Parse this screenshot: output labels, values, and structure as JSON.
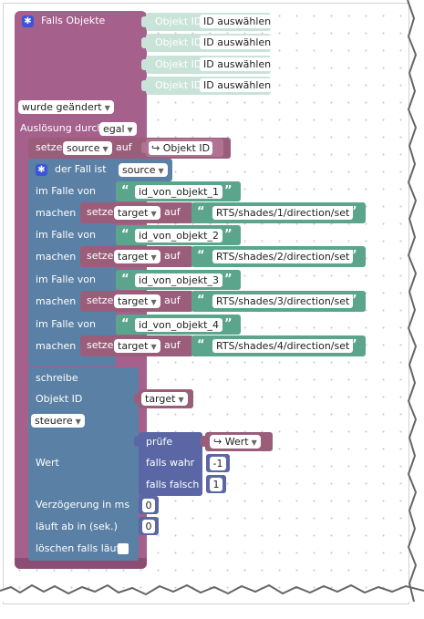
{
  "main_block": {
    "title": "Falls Objekte",
    "object_inputs": [
      {
        "label": "Objekt ID",
        "value": "ID auswählen"
      },
      {
        "label": "Objekt ID",
        "value": "ID auswählen"
      },
      {
        "label": "Objekt ID",
        "value": "ID auswählen"
      },
      {
        "label": "Objekt ID",
        "value": "ID auswählen"
      }
    ],
    "change_dropdown": "wurde geändert",
    "trigger_label": "Auslösung durch",
    "trigger_value": "egal"
  },
  "set_source": {
    "setze": "setze",
    "var": "source",
    "auf": "auf",
    "object_id": "Objekt ID"
  },
  "switch": {
    "title": "der Fall ist",
    "var": "source",
    "cases": [
      {
        "case_label": "im Falle von",
        "case_value": "id_von_objekt_1",
        "do_label": "machen",
        "setze": "setze",
        "var": "target",
        "auf": "auf",
        "value": "RTS/shades/1/direction/set"
      },
      {
        "case_label": "im Falle von",
        "case_value": "id_von_objekt_2",
        "do_label": "machen",
        "setze": "setze",
        "var": "target",
        "auf": "auf",
        "value": "RTS/shades/2/direction/set"
      },
      {
        "case_label": "im Falle von",
        "case_value": "id_von_objekt_3",
        "do_label": "machen",
        "setze": "setze",
        "var": "target",
        "auf": "auf",
        "value": "RTS/shades/3/direction/set"
      },
      {
        "case_label": "im Falle von",
        "case_value": "id_von_objekt_4",
        "do_label": "machen",
        "setze": "setze",
        "var": "target",
        "auf": "auf",
        "value": "RTS/shades/4/direction/set"
      }
    ]
  },
  "write_block": {
    "title": "schreibe",
    "object_id_label": "Objekt ID",
    "target_var": "target",
    "mode": "steuere",
    "value_label": "Wert",
    "check_label": "prüfe",
    "check_var": "Wert",
    "if_true_label": "falls wahr",
    "if_true_value": "-1",
    "if_false_label": "falls falsch",
    "if_false_value": "1",
    "delay_label": "Verzögerung in ms",
    "delay_value": "0",
    "expire_label": "läuft ab in (sek.)",
    "expire_value": "0",
    "clear_label": "löschen falls läuft"
  },
  "quote_open": "“",
  "quote_close": "”",
  "icons": {
    "gear": "gear-icon",
    "get_var": "get-variable-icon",
    "dropdown": "dropdown-arrow-icon"
  },
  "colors": {
    "event": "#a5608c",
    "variable": "#9a5e7a",
    "switch": "#5b80a5",
    "string": "#5ba58c",
    "trigger": "#c9e3d9"
  }
}
